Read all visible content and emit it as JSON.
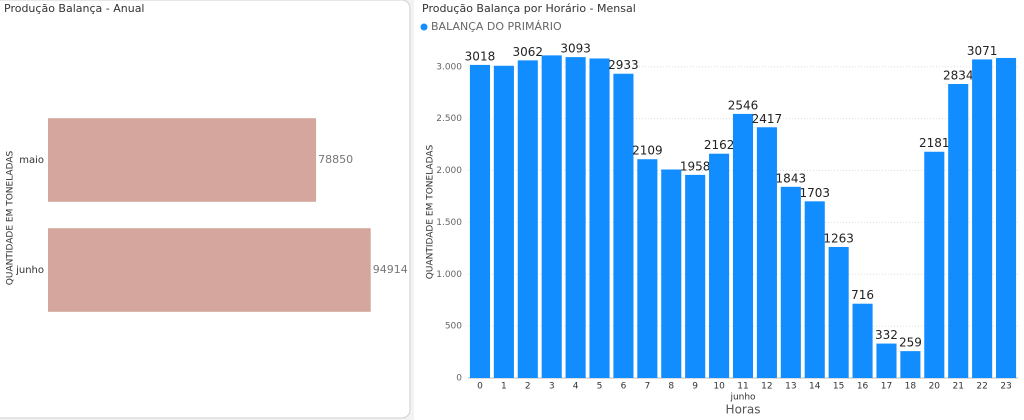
{
  "chart_data": [
    {
      "type": "hbar",
      "title": "Produção Balança - Anual",
      "ylabel": "QUANTIDADE EM TONELADAS",
      "categories": [
        "maio",
        "junho"
      ],
      "values": [
        78850,
        94914
      ],
      "color": "#d4a69d",
      "xlim": [
        0,
        105000
      ]
    },
    {
      "type": "bar",
      "title": "Produção Balança por Horário - Mensal",
      "legend": "top-left",
      "ylabel": "QUANTIDADE EM TONELADAS",
      "xlabel": "Horas",
      "x_group_label": "junho",
      "categories": [
        "0",
        "1",
        "2",
        "3",
        "4",
        "5",
        "6",
        "7",
        "8",
        "9",
        "10",
        "11",
        "12",
        "13",
        "14",
        "15",
        "16",
        "17",
        "18",
        "20",
        "21",
        "22",
        "23"
      ],
      "series": [
        {
          "name": "BALANÇA DO PRIMÁRIO",
          "color": "#118dff",
          "values": [
            3018,
            3010,
            3062,
            3110,
            3093,
            3080,
            2933,
            2109,
            2010,
            1958,
            2162,
            2546,
            2417,
            1843,
            1703,
            1263,
            716,
            332,
            259,
            2181,
            2834,
            3071,
            3085
          ],
          "value_labels": [
            "3018",
            null,
            "3062",
            null,
            "3093",
            null,
            "2933",
            "2109",
            null,
            "1958",
            "2162",
            "2546",
            "2417",
            "1843",
            "1703",
            "1263",
            "716",
            "332",
            "259",
            "2181",
            "2834",
            "3071",
            null
          ]
        }
      ],
      "ylim": [
        0,
        3210
      ],
      "yticks": [
        0,
        500,
        {
          "value": 1000,
          "label": "1.000"
        },
        {
          "value": 1500,
          "label": "1.500"
        },
        {
          "value": 2000,
          "label": "2.000"
        },
        {
          "value": 2500,
          "label": "2.500"
        },
        {
          "value": 3000,
          "label": "3.000"
        }
      ],
      "grid": true
    }
  ]
}
